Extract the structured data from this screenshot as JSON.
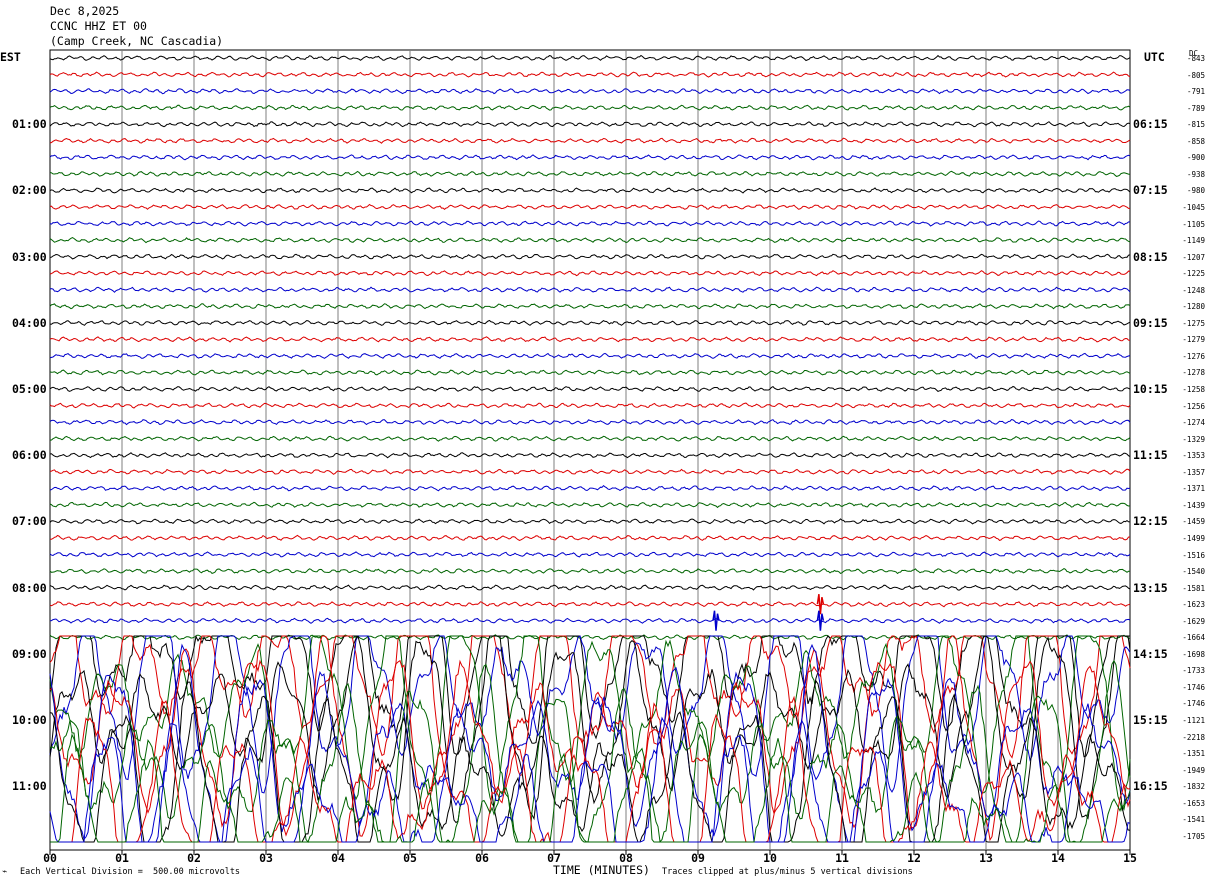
{
  "header": {
    "date": "Dec 8,2025",
    "station": "CCNC HHZ ET 00",
    "location": "(Camp Creek, NC Cascadia)"
  },
  "left_axis_title": "EST",
  "right_axis_title": "UTC",
  "dc_title": "DC",
  "footer": {
    "scale_note": "Each Vertical Division =  500.00 microvolts",
    "xlabel": "TIME (MINUTES)",
    "clip_note": "Traces clipped at plus/minus 5 vertical divisions"
  },
  "colors": {
    "black": "#000000",
    "red": "#dd0000",
    "blue": "#0000cc",
    "green": "#006400",
    "grid": "#7f7f7f"
  },
  "chart_data": {
    "type": "line",
    "title": "CCNC HHZ ET 00",
    "xlabel": "TIME (MINUTES)",
    "xlim": [
      0,
      15
    ],
    "x_ticks": [
      "00",
      "01",
      "02",
      "03",
      "04",
      "05",
      "06",
      "07",
      "08",
      "09",
      "10",
      "11",
      "12",
      "13",
      "14",
      "15"
    ],
    "trace_minutes": 15,
    "trace_colors": [
      "black",
      "red",
      "blue",
      "green"
    ],
    "est_hour_labels": [
      "01:00",
      "02:00",
      "03:00",
      "04:00",
      "05:00",
      "06:00",
      "07:00",
      "08:00",
      "09:00",
      "10:00",
      "11:00"
    ],
    "utc_hour_labels": [
      "06:15",
      "07:15",
      "08:15",
      "09:15",
      "10:15",
      "11:15",
      "12:15",
      "13:15",
      "14:15",
      "15:15",
      "16:15"
    ],
    "dc_offsets": [
      -843,
      -805,
      -791,
      -789,
      -815,
      -858,
      -900,
      -938,
      -980,
      -1045,
      -1105,
      -1149,
      -1207,
      -1225,
      -1248,
      -1280,
      -1275,
      -1279,
      -1276,
      -1278,
      -1258,
      -1256,
      -1274,
      -1329,
      -1353,
      -1357,
      -1371,
      -1439,
      -1459,
      -1499,
      -1516,
      -1540,
      -1581,
      -1623,
      -1629,
      -1664,
      -1698,
      -1733,
      -1746,
      -1746,
      -1121,
      -2218,
      -1351,
      -1949,
      -1832,
      -1653,
      -1541,
      -1705
    ],
    "scale_microvolts_per_division": 500.0,
    "clip_divisions": 5,
    "events": [
      {
        "trace_index": 34,
        "minute": 9.25,
        "description": "spike"
      },
      {
        "trace_index": 33,
        "minute": 10.7,
        "description": "spike"
      },
      {
        "trace_index": 34,
        "minute": 10.7,
        "description": "spike"
      }
    ],
    "noisy_from_trace_index": 36
  }
}
